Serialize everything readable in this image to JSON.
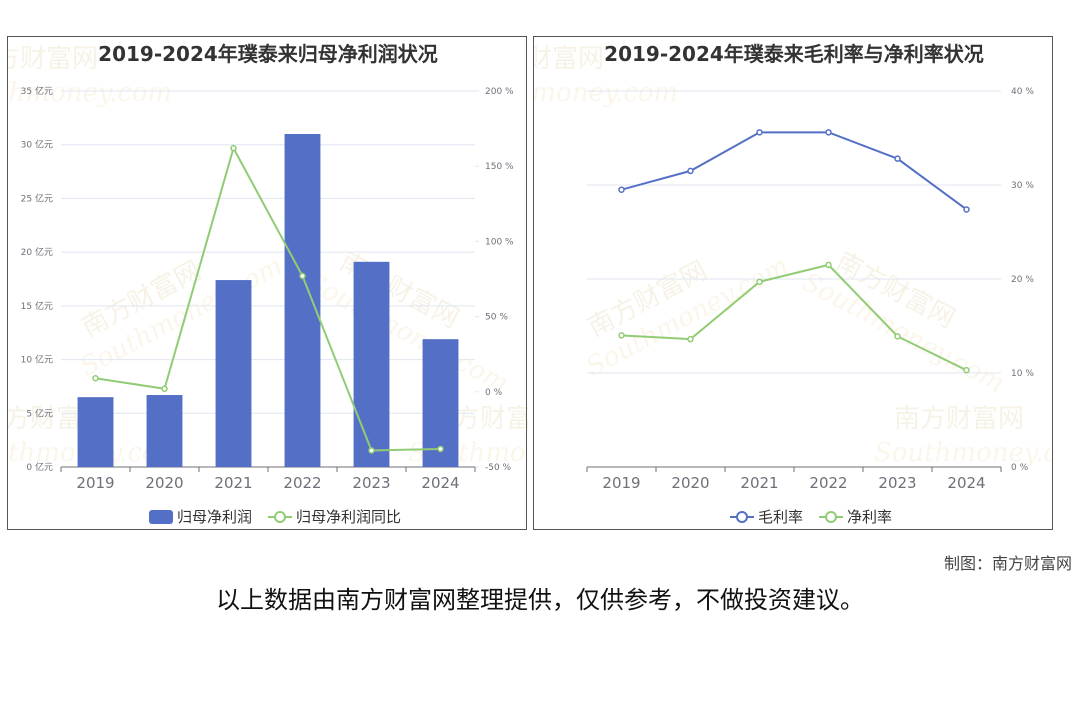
{
  "chart_data": [
    {
      "type": "bar",
      "title": "2019-2024年璞泰来归母净利润状况",
      "categories": [
        "2019",
        "2020",
        "2021",
        "2022",
        "2023",
        "2024"
      ],
      "series": [
        {
          "name": "归母净利润",
          "values": [
            6.5,
            6.7,
            17.4,
            31.0,
            19.1,
            11.9
          ],
          "axis": "left",
          "kind": "bar",
          "color": "#5470c6"
        },
        {
          "name": "归母净利润同比",
          "values": [
            9,
            2,
            162,
            77,
            -39,
            -38
          ],
          "axis": "right",
          "kind": "line",
          "color": "#91cc75"
        }
      ],
      "left_axis": {
        "ticks": [
          "0 亿元",
          "5 亿元",
          "10 亿元",
          "15 亿元",
          "20 亿元",
          "25 亿元",
          "30 亿元",
          "35 亿元"
        ],
        "ylim": [
          0,
          35
        ]
      },
      "right_axis": {
        "ticks": [
          "-50 %",
          "0 %",
          "50 %",
          "100 %",
          "150 %",
          "200 %"
        ],
        "ylim": [
          -50,
          200
        ]
      },
      "legend": [
        "归母净利润",
        "归母净利润同比"
      ],
      "legend_position": "bottom",
      "grid": true
    },
    {
      "type": "line",
      "title": "2019-2024年璞泰来毛利率与净利率状况",
      "categories": [
        "2019",
        "2020",
        "2021",
        "2022",
        "2023",
        "2024"
      ],
      "series": [
        {
          "name": "毛利率",
          "values": [
            29.5,
            31.5,
            35.6,
            35.6,
            32.8,
            27.4
          ],
          "color": "#5470c6"
        },
        {
          "name": "净利率",
          "values": [
            14.0,
            13.6,
            19.7,
            21.5,
            13.9,
            10.3
          ],
          "color": "#91cc75"
        }
      ],
      "right_axis": {
        "ticks": [
          "0 %",
          "10 %",
          "20 %",
          "30 %",
          "40 %"
        ],
        "ylim": [
          0,
          40
        ]
      },
      "legend": [
        "毛利率",
        "净利率"
      ],
      "legend_position": "bottom",
      "grid": true
    }
  ],
  "watermark": {
    "cn": "南方财富网",
    "en": "Southmoney.com"
  },
  "footer": {
    "credit": "制图：南方财富网",
    "disclaimer": "以上数据由南方财富网整理提供，仅供参考，不做投资建议。"
  }
}
